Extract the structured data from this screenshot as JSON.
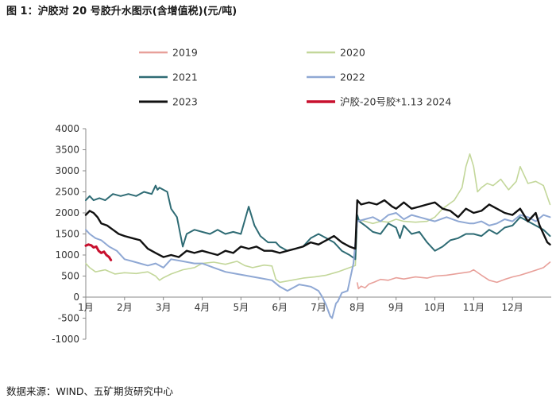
{
  "header": {
    "title": "图 1：沪胶对 20 号胶升水图示(含增值税)(元/吨)"
  },
  "footer": {
    "source": "数据来源：WIND、五矿期货研究中心"
  },
  "chart_data": {
    "type": "line",
    "title": "图 1：沪胶对 20 号胶升水图示(含增值税)(元/吨)",
    "xlabel": "",
    "ylabel": "",
    "ylim": [
      -1000,
      4000
    ],
    "y_ticks": [
      -1000,
      -500,
      0,
      500,
      1000,
      1500,
      2000,
      2500,
      3000,
      3500,
      4000
    ],
    "x_ticks": [
      "1月",
      "2月",
      "3月",
      "4月",
      "5月",
      "6月",
      "7月",
      "8月",
      "9月",
      "10月",
      "11月",
      "12月"
    ],
    "x_unit": "month position (1 = start of 1月)",
    "grid": false,
    "legend_position": "top",
    "series": [
      {
        "name": "2019",
        "color": "#e8a09a",
        "width": 1.6,
        "x": [
          8.0,
          8.03,
          8.1,
          8.2,
          8.3,
          8.45,
          8.6,
          8.8,
          9.0,
          9.2,
          9.5,
          9.8,
          10.0,
          10.3,
          10.6,
          10.9,
          11.0,
          11.2,
          11.4,
          11.6,
          11.8,
          12.0,
          12.2,
          12.4,
          12.6,
          12.8,
          12.97
        ],
        "y": [
          340,
          200,
          260,
          220,
          310,
          360,
          420,
          400,
          460,
          430,
          480,
          450,
          500,
          520,
          560,
          600,
          650,
          520,
          400,
          350,
          420,
          480,
          520,
          580,
          640,
          700,
          830
        ]
      },
      {
        "name": "2020",
        "color": "#c3d79a",
        "width": 1.6,
        "x": [
          1.0,
          1.1,
          1.25,
          1.5,
          1.75,
          2.0,
          2.3,
          2.6,
          2.8,
          2.9,
          3.0,
          3.2,
          3.5,
          3.8,
          4.0,
          4.3,
          4.6,
          4.9,
          5.1,
          5.3,
          5.6,
          5.8,
          5.9,
          6.0,
          6.3,
          6.6,
          6.9,
          7.2,
          7.5,
          7.8,
          7.95,
          8.0,
          8.2,
          8.4,
          8.6,
          8.8,
          9.0,
          9.2,
          9.5,
          9.8,
          10.0,
          10.2,
          10.35,
          10.5,
          10.7,
          10.8,
          10.9,
          11.0,
          11.1,
          11.2,
          11.35,
          11.5,
          11.7,
          11.9,
          12.1,
          12.2,
          12.4,
          12.6,
          12.8,
          12.97
        ],
        "y": [
          800,
          700,
          600,
          650,
          550,
          580,
          560,
          600,
          500,
          400,
          460,
          550,
          650,
          700,
          800,
          830,
          780,
          850,
          750,
          700,
          760,
          740,
          420,
          350,
          400,
          450,
          480,
          520,
          600,
          700,
          750,
          1850,
          1800,
          1750,
          1800,
          1780,
          1850,
          1800,
          1780,
          1800,
          1900,
          2100,
          2200,
          2300,
          2600,
          3100,
          3400,
          3100,
          2500,
          2600,
          2700,
          2650,
          2800,
          2550,
          2750,
          3100,
          2700,
          2750,
          2650,
          2200
        ]
      },
      {
        "name": "2021",
        "color": "#2e6b74",
        "width": 2,
        "x": [
          1.0,
          1.1,
          1.2,
          1.35,
          1.5,
          1.7,
          1.9,
          2.1,
          2.3,
          2.5,
          2.7,
          2.8,
          2.85,
          2.9,
          3.0,
          3.1,
          3.2,
          3.35,
          3.5,
          3.6,
          3.8,
          4.0,
          4.2,
          4.4,
          4.6,
          4.8,
          5.0,
          5.2,
          5.35,
          5.5,
          5.7,
          5.9,
          6.0,
          6.2,
          6.4,
          6.6,
          6.8,
          7.0,
          7.2,
          7.4,
          7.6,
          7.8,
          7.95,
          8.0,
          8.05,
          8.2,
          8.4,
          8.6,
          8.8,
          9.0,
          9.1,
          9.2,
          9.4,
          9.6,
          9.8,
          10.0,
          10.2,
          10.4,
          10.6,
          10.8,
          11.0,
          11.2,
          11.4,
          11.6,
          11.8,
          12.0,
          12.2,
          12.4,
          12.6,
          12.8,
          12.97
        ],
        "y": [
          2300,
          2400,
          2300,
          2350,
          2300,
          2450,
          2400,
          2450,
          2400,
          2500,
          2450,
          2650,
          2550,
          2600,
          2550,
          2500,
          2100,
          1900,
          1200,
          1500,
          1600,
          1550,
          1500,
          1600,
          1500,
          1550,
          1500,
          2150,
          1700,
          1450,
          1300,
          1300,
          1200,
          1100,
          1150,
          1200,
          1400,
          1500,
          1400,
          1300,
          1100,
          1000,
          900,
          1950,
          1800,
          1700,
          1550,
          1500,
          1750,
          1650,
          1400,
          1700,
          1500,
          1550,
          1300,
          1100,
          1200,
          1350,
          1400,
          1500,
          1500,
          1450,
          1600,
          1500,
          1650,
          1700,
          1900,
          1800,
          1700,
          1600,
          1450
        ]
      },
      {
        "name": "2022",
        "color": "#8fa8d4",
        "width": 2,
        "x": [
          1.0,
          1.1,
          1.25,
          1.4,
          1.6,
          1.8,
          2.0,
          2.2,
          2.4,
          2.6,
          2.8,
          3.0,
          3.2,
          3.5,
          3.8,
          4.0,
          4.3,
          4.6,
          4.9,
          5.2,
          5.5,
          5.8,
          6.0,
          6.2,
          6.5,
          6.8,
          7.0,
          7.1,
          7.2,
          7.3,
          7.35,
          7.45,
          7.5,
          7.6,
          7.75,
          7.9,
          8.0,
          8.2,
          8.4,
          8.6,
          8.8,
          9.0,
          9.2,
          9.4,
          9.6,
          9.8,
          10.0,
          10.3,
          10.6,
          10.9,
          11.0,
          11.2,
          11.4,
          11.6,
          11.8,
          12.0,
          12.2,
          12.4,
          12.6,
          12.8,
          12.97
        ],
        "y": [
          1600,
          1500,
          1400,
          1350,
          1200,
          1100,
          900,
          850,
          800,
          750,
          800,
          700,
          900,
          850,
          800,
          800,
          700,
          600,
          550,
          500,
          450,
          400,
          250,
          150,
          300,
          250,
          150,
          0,
          -200,
          -450,
          -500,
          -150,
          -100,
          100,
          150,
          800,
          1800,
          1850,
          1900,
          1800,
          1950,
          2000,
          1850,
          1950,
          1900,
          1850,
          1800,
          1900,
          1800,
          1750,
          1750,
          1800,
          1700,
          1750,
          1850,
          1800,
          1950,
          1900,
          1800,
          1950,
          1900
        ]
      },
      {
        "name": "2023",
        "color": "#111111",
        "width": 2.4,
        "x": [
          1.0,
          1.1,
          1.2,
          1.3,
          1.4,
          1.55,
          1.7,
          1.85,
          2.0,
          2.2,
          2.4,
          2.6,
          2.8,
          3.0,
          3.2,
          3.4,
          3.6,
          3.8,
          4.0,
          4.2,
          4.4,
          4.6,
          4.8,
          5.0,
          5.2,
          5.4,
          5.6,
          5.8,
          6.0,
          6.2,
          6.4,
          6.6,
          6.8,
          7.0,
          7.2,
          7.4,
          7.6,
          7.8,
          7.95,
          8.0,
          8.1,
          8.3,
          8.5,
          8.7,
          8.9,
          9.0,
          9.2,
          9.4,
          9.6,
          9.8,
          10.0,
          10.2,
          10.4,
          10.6,
          10.8,
          11.0,
          11.2,
          11.4,
          11.6,
          11.8,
          12.0,
          12.2,
          12.4,
          12.6,
          12.7,
          12.8,
          12.9,
          12.97
        ],
        "y": [
          1950,
          2050,
          2000,
          1900,
          1750,
          1700,
          1600,
          1500,
          1450,
          1400,
          1350,
          1150,
          1050,
          950,
          1000,
          950,
          1100,
          1050,
          1100,
          1050,
          1000,
          1100,
          1050,
          1200,
          1150,
          1200,
          1100,
          1100,
          1050,
          1100,
          1150,
          1200,
          1300,
          1250,
          1350,
          1450,
          1300,
          1200,
          1150,
          2300,
          2200,
          2250,
          2200,
          2300,
          2150,
          2100,
          2250,
          2100,
          2150,
          2200,
          2250,
          2100,
          2050,
          1900,
          2100,
          2000,
          2050,
          2200,
          2100,
          2000,
          1950,
          2100,
          1800,
          2000,
          1700,
          1500,
          1300,
          1250
        ]
      },
      {
        "name": "沪胶-20号胶*1.13 2024",
        "color": "#c8102e",
        "width": 3,
        "x": [
          1.0,
          1.07,
          1.14,
          1.2,
          1.27,
          1.33,
          1.4,
          1.47,
          1.53,
          1.6,
          1.65
        ],
        "y": [
          1220,
          1250,
          1230,
          1180,
          1200,
          1100,
          1050,
          1080,
          1000,
          950,
          880
        ]
      }
    ]
  }
}
